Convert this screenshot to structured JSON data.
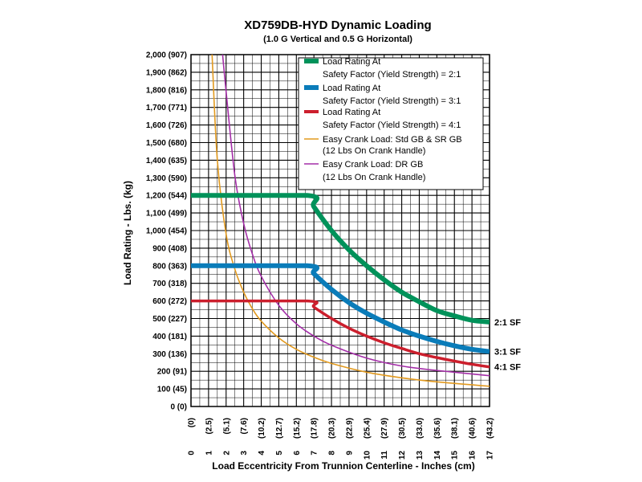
{
  "chart_data": {
    "type": "line",
    "title": "XD759DB-HYD Dynamic Loading",
    "subtitle": "(1.0 G Vertical and 0.5 G Horizontal)",
    "xlabel": "Load Eccentricity From Trunnion Centerline - Inches (cm)",
    "ylabel": "Load Rating - Lbs. (kg)",
    "xlim": [
      0,
      17
    ],
    "ylim": [
      0,
      2000
    ],
    "grid": true,
    "x_ticks": [
      0,
      1,
      2,
      3,
      4,
      5,
      6,
      7,
      8,
      9,
      10,
      11,
      12,
      13,
      14,
      15,
      16,
      17
    ],
    "x_cm_labels": [
      "(0)",
      "(2.5)",
      "(5.1)",
      "(7.6)",
      "(10.2)",
      "(12.7)",
      "(15.2)",
      "(17.8)",
      "(20.3)",
      "(22.9)",
      "(25.4)",
      "(27.9)",
      "(30.5)",
      "(33.0)",
      "(35.6)",
      "(38.1)",
      "(40.6)",
      "(43.2)"
    ],
    "y_ticks": [
      0,
      100,
      200,
      300,
      400,
      500,
      600,
      700,
      800,
      900,
      1000,
      1100,
      1200,
      1300,
      1400,
      1500,
      1600,
      1700,
      1800,
      1900,
      2000
    ],
    "y_labels": [
      "0 (0)",
      "100 (45)",
      "200 (91)",
      "300 (136)",
      "400 (181)",
      "500 (227)",
      "600 (272)",
      "700 (318)",
      "800 (363)",
      "900 (408)",
      "1,000 (454)",
      "1,100 (499)",
      "1,200 (544)",
      "1,300 (590)",
      "1,400 (635)",
      "1,500 (680)",
      "1,600 (726)",
      "1,700 (771)",
      "1,800 (816)",
      "1,900 (862)",
      "2,000 (907)"
    ],
    "legend_position": "top-right",
    "series": [
      {
        "line1": "Load Rating At",
        "line2": "Safety Factor (Yield Strength) = 2:1",
        "end_label": "2:1 SF",
        "color": "#00925a",
        "weight": "heavy",
        "x": [
          0,
          6.6,
          7,
          8,
          9,
          10,
          11,
          12,
          13,
          14,
          15,
          16,
          17
        ],
        "y": [
          1200,
          1200,
          1135,
          1000,
          890,
          800,
          720,
          650,
          595,
          545,
          515,
          490,
          480
        ]
      },
      {
        "line1": "Load Rating At",
        "line2": "Safety Factor (Yield Strength) = 3:1",
        "end_label": "3:1 SF",
        "color": "#0a7cb9",
        "weight": "heavy",
        "x": [
          0,
          6.6,
          7,
          8,
          9,
          10,
          11,
          12,
          13,
          14,
          15,
          16,
          17
        ],
        "y": [
          800,
          800,
          755,
          665,
          590,
          530,
          480,
          435,
          400,
          370,
          345,
          325,
          312
        ]
      },
      {
        "line1": "Load Rating At",
        "line2": "Safety Factor (Yield Strength) = 4:1",
        "end_label": "4:1 SF",
        "color": "#cc1f2d",
        "weight": "medium",
        "x": [
          0,
          6.6,
          7,
          8,
          9,
          10,
          11,
          12,
          13,
          14,
          15,
          16,
          17
        ],
        "y": [
          600,
          600,
          565,
          500,
          445,
          400,
          362,
          330,
          300,
          278,
          258,
          240,
          225
        ]
      },
      {
        "line1": "Easy Crank Load: Std GB & SR  GB",
        "line2": "(12 Lbs On Crank Handle)",
        "end_label": "",
        "color": "#e29a1f",
        "weight": "thin",
        "x": [
          1.2,
          1.5,
          2,
          2.5,
          3,
          3.5,
          4,
          5,
          6,
          7,
          8,
          10,
          12,
          14,
          17
        ],
        "y": [
          2000,
          1400,
          980,
          780,
          650,
          555,
          485,
          390,
          325,
          280,
          245,
          195,
          163,
          140,
          115
        ]
      },
      {
        "line1": "Easy Crank Load: DR GB",
        "line2": "(12 Lbs On Crank Handle)",
        "end_label": "",
        "color": "#a42ea8",
        "weight": "thin",
        "x": [
          1.8,
          2,
          2.5,
          3,
          3.5,
          4,
          5,
          6,
          7,
          8,
          10,
          12,
          14,
          17
        ],
        "y": [
          2000,
          1790,
          1310,
          1040,
          865,
          740,
          575,
          470,
          400,
          348,
          275,
          230,
          205,
          175
        ]
      }
    ]
  }
}
